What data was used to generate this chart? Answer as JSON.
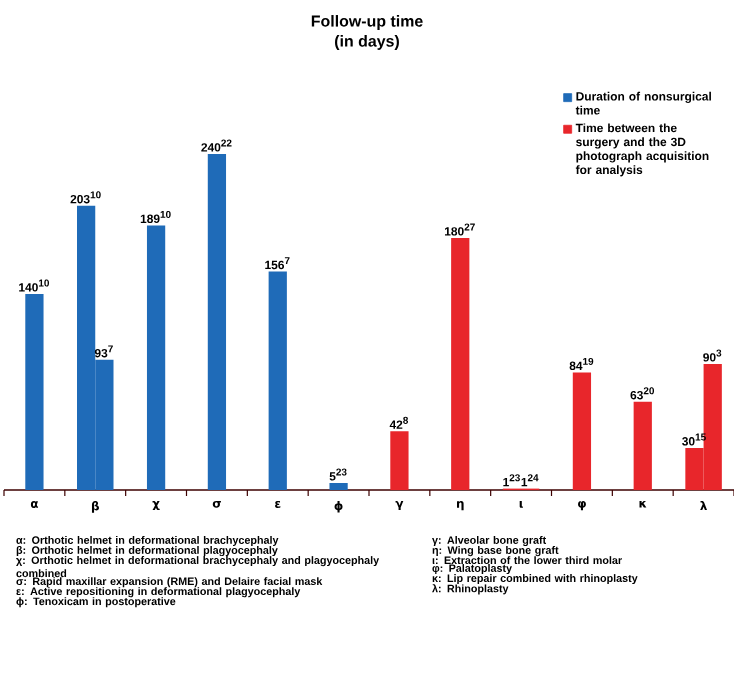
{
  "chart_data": {
    "type": "bar",
    "title": "Follow-up time",
    "subtitle": "(in days)",
    "categories": [
      "α",
      "β",
      "χ",
      "σ",
      "ε",
      "ϕ",
      "γ",
      "η",
      "ι",
      "φ",
      "κ",
      "λ"
    ],
    "series": [
      {
        "name": "Duration of nonsurgical time",
        "color": "#1f6bb8",
        "values": [
          140,
          203,
          189,
          240,
          156,
          5,
          null,
          null,
          null,
          null,
          null,
          null
        ],
        "value_labels": [
          "140$^{10}$",
          "203$^{10}$",
          "189$^{10}$",
          "240$^{22}$",
          "156$^{7}$",
          "5$^{23}$",
          null,
          null,
          null,
          null,
          null,
          null
        ]
      },
      {
        "color": "#1f6bb8",
        "values": [
          null,
          93,
          null,
          null,
          null,
          null,
          null,
          null,
          null,
          null,
          null,
          null
        ],
        "value_labels": [
          null,
          "93$^{7}$",
          null,
          null,
          null,
          null,
          null,
          null,
          null,
          null,
          null,
          null
        ]
      },
      {
        "name": "Time between the surgery and the 3D photograph acquisition for analysis",
        "color": "#e8262b",
        "values": [
          null,
          null,
          null,
          null,
          null,
          null,
          42,
          180,
          1,
          84,
          63,
          30
        ],
        "value_labels": [
          null,
          null,
          null,
          null,
          null,
          null,
          "42$^{8}$",
          "180$^{27}$",
          "1$^{23}$",
          "84$^{19}$",
          "63$^{20}$",
          "30$^{15}$"
        ]
      },
      {
        "color": "#e8262b",
        "values": [
          null,
          null,
          null,
          null,
          null,
          null,
          null,
          null,
          1,
          null,
          null,
          90
        ],
        "value_labels": [
          null,
          null,
          null,
          null,
          null,
          null,
          null,
          null,
          "1$^{24}$",
          null,
          null,
          "90$^{3}$"
        ]
      }
    ],
    "legend": "top right",
    "annotations": [
      "α: Orthotic helmet in deformational brachycephaly",
      "β: Orthotic helmet in deformational plagyocephaly",
      "χ: Orthotic helmet in deformational brachycephaly and plagyocephaly combined",
      "σ: Rapid maxillar expansion (RME) and Delaire facial mask",
      "ε: Active repositioning in deformational plagyocephaly",
      "ϕ: Tenoxicam in postoperative",
      "γ: Alveolar bone graft",
      "η: Wing base bone graft",
      "ι: Extraction of the lower third molar",
      "φ: Palatoplasty",
      "κ: Lip repair combined with rhinoplasty",
      "λ: Rhinoplasty"
    ]
  }
}
